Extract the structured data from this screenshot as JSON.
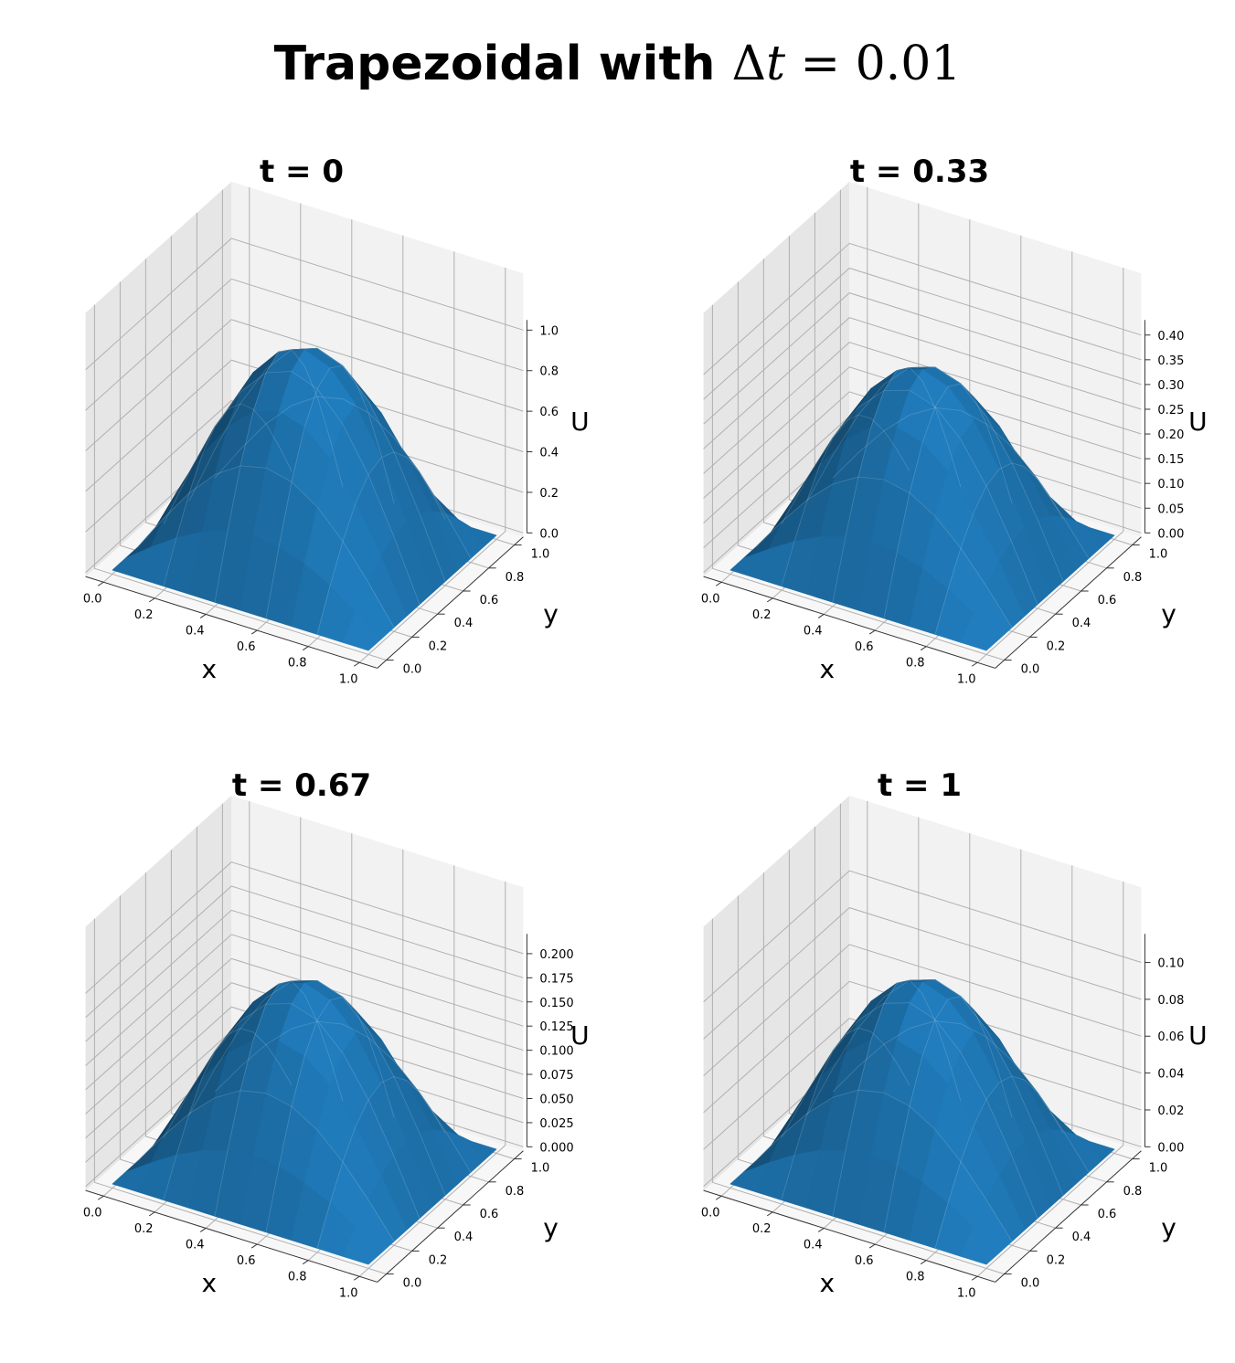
{
  "title": {
    "prefix": "Trapezoidal with ",
    "delta": "Δ",
    "t": "t",
    "eq": " = 0.01"
  },
  "colors": {
    "surface": "#1f77b4",
    "pane_back": "#f2f2f2",
    "pane_side": "#e6e6e6",
    "pane_floor": "#f7f7f7",
    "grid": "#b0b0b0"
  },
  "chart_data": [
    {
      "type": "surface",
      "title": "t = 0",
      "xlabel": "x",
      "ylabel": "y",
      "zlabel": "U",
      "xlim": [
        0,
        1
      ],
      "ylim": [
        0,
        1
      ],
      "zlim": [
        0,
        1.0
      ],
      "x_ticks": [
        "0.0",
        "0.2",
        "0.4",
        "0.6",
        "0.8",
        "1.0"
      ],
      "y_ticks": [
        "0.0",
        "0.2",
        "0.4",
        "0.6",
        "0.8",
        "1.0"
      ],
      "z_ticks": [
        "0.0",
        "0.2",
        "0.4",
        "0.6",
        "0.8",
        "1.0"
      ],
      "grid": true,
      "function": "U(x,y) = sin(pi*x)*sin(pi*y)",
      "amplitude": 1.0,
      "mesh_points": 11
    },
    {
      "type": "surface",
      "title": "t = 0.33",
      "xlabel": "x",
      "ylabel": "y",
      "zlabel": "U",
      "xlim": [
        0,
        1
      ],
      "ylim": [
        0,
        1
      ],
      "zlim": [
        0,
        0.41
      ],
      "x_ticks": [
        "0.0",
        "0.2",
        "0.4",
        "0.6",
        "0.8",
        "1.0"
      ],
      "y_ticks": [
        "0.0",
        "0.2",
        "0.4",
        "0.6",
        "0.8",
        "1.0"
      ],
      "z_ticks": [
        "0.00",
        "0.05",
        "0.10",
        "0.15",
        "0.20",
        "0.25",
        "0.30",
        "0.35",
        "0.40"
      ],
      "grid": true,
      "function": "U(x,y) = A*sin(pi*x)*sin(pi*y)",
      "amplitude": 0.37,
      "mesh_points": 11
    },
    {
      "type": "surface",
      "title": "t = 0.67",
      "xlabel": "x",
      "ylabel": "y",
      "zlabel": "U",
      "xlim": [
        0,
        1
      ],
      "ylim": [
        0,
        1
      ],
      "zlim": [
        0,
        0.21
      ],
      "x_ticks": [
        "0.0",
        "0.2",
        "0.4",
        "0.6",
        "0.8",
        "1.0"
      ],
      "y_ticks": [
        "0.0",
        "0.2",
        "0.4",
        "0.6",
        "0.8",
        "1.0"
      ],
      "z_ticks": [
        "0.000",
        "0.025",
        "0.050",
        "0.075",
        "0.100",
        "0.125",
        "0.150",
        "0.175",
        "0.200"
      ],
      "grid": true,
      "function": "U(x,y) = A*sin(pi*x)*sin(pi*y)",
      "amplitude": 0.19,
      "mesh_points": 11
    },
    {
      "type": "surface",
      "title": "t = 1",
      "xlabel": "x",
      "ylabel": "y",
      "zlabel": "U",
      "xlim": [
        0,
        1
      ],
      "ylim": [
        0,
        1
      ],
      "zlim": [
        0,
        0.11
      ],
      "x_ticks": [
        "0.0",
        "0.2",
        "0.4",
        "0.6",
        "0.8",
        "1.0"
      ],
      "y_ticks": [
        "0.0",
        "0.2",
        "0.4",
        "0.6",
        "0.8",
        "1.0"
      ],
      "z_ticks": [
        "0.00",
        "0.02",
        "0.04",
        "0.06",
        "0.08",
        "0.10"
      ],
      "grid": true,
      "function": "U(x,y) = A*sin(pi*x)*sin(pi*y)",
      "amplitude": 0.1,
      "mesh_points": 11
    }
  ]
}
